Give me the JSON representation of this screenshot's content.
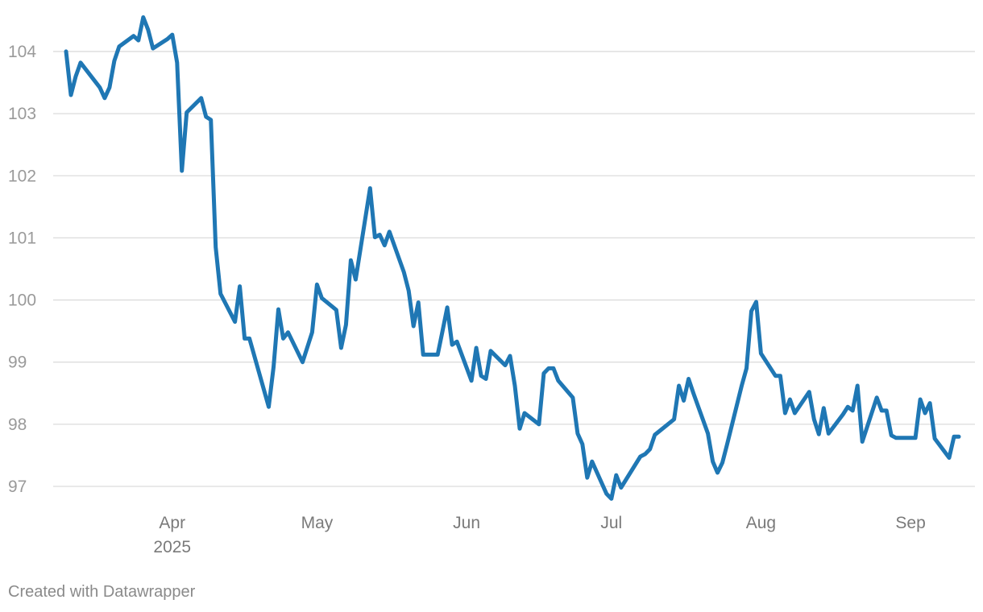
{
  "credit": "Created with Datawrapper",
  "colors": {
    "series": "#1f77b4",
    "grid": "#dcdcdc",
    "tick_label": "#9a9a9a"
  },
  "chart_data": {
    "type": "line",
    "title": "",
    "xlabel": "",
    "ylabel": "",
    "ylim": [
      96.8,
      104.6
    ],
    "grid": true,
    "legend": "none",
    "y_ticks": [
      97,
      98,
      99,
      100,
      101,
      102,
      103,
      104
    ],
    "x_ticks": [
      {
        "date": "2025-04-01",
        "label": "Apr",
        "sublabel": "2025"
      },
      {
        "date": "2025-05-01",
        "label": "May",
        "sublabel": ""
      },
      {
        "date": "2025-06-01",
        "label": "Jun",
        "sublabel": ""
      },
      {
        "date": "2025-07-01",
        "label": "Jul",
        "sublabel": ""
      },
      {
        "date": "2025-08-01",
        "label": "Aug",
        "sublabel": ""
      },
      {
        "date": "2025-09-01",
        "label": "Sep",
        "sublabel": ""
      }
    ],
    "series": [
      {
        "color": "#1f77b4",
        "points": [
          [
            "2025-03-10",
            104.0
          ],
          [
            "2025-03-11",
            103.3
          ],
          [
            "2025-03-12",
            103.6
          ],
          [
            "2025-03-13",
            103.82
          ],
          [
            "2025-03-17",
            103.42
          ],
          [
            "2025-03-18",
            103.25
          ],
          [
            "2025-03-19",
            103.42
          ],
          [
            "2025-03-20",
            103.85
          ],
          [
            "2025-03-21",
            104.08
          ],
          [
            "2025-03-24",
            104.25
          ],
          [
            "2025-03-25",
            104.18
          ],
          [
            "2025-03-26",
            104.55
          ],
          [
            "2025-03-27",
            104.35
          ],
          [
            "2025-03-28",
            104.05
          ],
          [
            "2025-03-31",
            104.2
          ],
          [
            "2025-04-01",
            104.27
          ],
          [
            "2025-04-02",
            103.82
          ],
          [
            "2025-04-03",
            102.08
          ],
          [
            "2025-04-04",
            103.02
          ],
          [
            "2025-04-07",
            103.25
          ],
          [
            "2025-04-08",
            102.95
          ],
          [
            "2025-04-09",
            102.9
          ],
          [
            "2025-04-10",
            100.85
          ],
          [
            "2025-04-11",
            100.1
          ],
          [
            "2025-04-14",
            99.65
          ],
          [
            "2025-04-15",
            100.22
          ],
          [
            "2025-04-16",
            99.38
          ],
          [
            "2025-04-17",
            99.38
          ],
          [
            "2025-04-21",
            98.28
          ],
          [
            "2025-04-22",
            98.92
          ],
          [
            "2025-04-23",
            99.85
          ],
          [
            "2025-04-24",
            99.38
          ],
          [
            "2025-04-25",
            99.48
          ],
          [
            "2025-04-28",
            99.0
          ],
          [
            "2025-04-30",
            99.48
          ],
          [
            "2025-05-01",
            100.25
          ],
          [
            "2025-05-02",
            100.03
          ],
          [
            "2025-05-05",
            99.84
          ],
          [
            "2025-05-06",
            99.23
          ],
          [
            "2025-05-07",
            99.6
          ],
          [
            "2025-05-08",
            100.64
          ],
          [
            "2025-05-09",
            100.33
          ],
          [
            "2025-05-12",
            101.8
          ],
          [
            "2025-05-13",
            101.01
          ],
          [
            "2025-05-14",
            101.05
          ],
          [
            "2025-05-15",
            100.88
          ],
          [
            "2025-05-16",
            101.1
          ],
          [
            "2025-05-19",
            100.45
          ],
          [
            "2025-05-20",
            100.15
          ],
          [
            "2025-05-21",
            99.58
          ],
          [
            "2025-05-22",
            99.96
          ],
          [
            "2025-05-23",
            99.12
          ],
          [
            "2025-05-26",
            99.12
          ],
          [
            "2025-05-27",
            99.5
          ],
          [
            "2025-05-28",
            99.88
          ],
          [
            "2025-05-29",
            99.28
          ],
          [
            "2025-05-30",
            99.33
          ],
          [
            "2025-06-02",
            98.7
          ],
          [
            "2025-06-03",
            99.23
          ],
          [
            "2025-06-04",
            98.78
          ],
          [
            "2025-06-05",
            98.73
          ],
          [
            "2025-06-06",
            99.18
          ],
          [
            "2025-06-09",
            98.95
          ],
          [
            "2025-06-10",
            99.1
          ],
          [
            "2025-06-11",
            98.62
          ],
          [
            "2025-06-12",
            97.93
          ],
          [
            "2025-06-13",
            98.18
          ],
          [
            "2025-06-16",
            98.0
          ],
          [
            "2025-06-17",
            98.82
          ],
          [
            "2025-06-18",
            98.9
          ],
          [
            "2025-06-19",
            98.9
          ],
          [
            "2025-06-20",
            98.7
          ],
          [
            "2025-06-23",
            98.43
          ],
          [
            "2025-06-24",
            97.85
          ],
          [
            "2025-06-25",
            97.68
          ],
          [
            "2025-06-26",
            97.14
          ],
          [
            "2025-06-27",
            97.4
          ],
          [
            "2025-06-30",
            96.88
          ],
          [
            "2025-07-01",
            96.8
          ],
          [
            "2025-07-02",
            97.18
          ],
          [
            "2025-07-03",
            96.98
          ],
          [
            "2025-07-07",
            97.48
          ],
          [
            "2025-07-08",
            97.52
          ],
          [
            "2025-07-09",
            97.6
          ],
          [
            "2025-07-10",
            97.83
          ],
          [
            "2025-07-14",
            98.08
          ],
          [
            "2025-07-15",
            98.62
          ],
          [
            "2025-07-16",
            98.38
          ],
          [
            "2025-07-17",
            98.73
          ],
          [
            "2025-07-18",
            98.5
          ],
          [
            "2025-07-21",
            97.85
          ],
          [
            "2025-07-22",
            97.4
          ],
          [
            "2025-07-23",
            97.22
          ],
          [
            "2025-07-24",
            97.38
          ],
          [
            "2025-07-25",
            97.68
          ],
          [
            "2025-07-28",
            98.62
          ],
          [
            "2025-07-29",
            98.9
          ],
          [
            "2025-07-30",
            99.82
          ],
          [
            "2025-07-31",
            99.97
          ],
          [
            "2025-08-01",
            99.14
          ],
          [
            "2025-08-04",
            98.78
          ],
          [
            "2025-08-05",
            98.78
          ],
          [
            "2025-08-06",
            98.18
          ],
          [
            "2025-08-07",
            98.4
          ],
          [
            "2025-08-08",
            98.18
          ],
          [
            "2025-08-11",
            98.52
          ],
          [
            "2025-08-12",
            98.08
          ],
          [
            "2025-08-13",
            97.84
          ],
          [
            "2025-08-14",
            98.26
          ],
          [
            "2025-08-15",
            97.85
          ],
          [
            "2025-08-18",
            98.16
          ],
          [
            "2025-08-19",
            98.28
          ],
          [
            "2025-08-20",
            98.22
          ],
          [
            "2025-08-21",
            98.62
          ],
          [
            "2025-08-22",
            97.72
          ],
          [
            "2025-08-25",
            98.43
          ],
          [
            "2025-08-26",
            98.22
          ],
          [
            "2025-08-27",
            98.22
          ],
          [
            "2025-08-28",
            97.82
          ],
          [
            "2025-08-29",
            97.78
          ],
          [
            "2025-09-02",
            97.78
          ],
          [
            "2025-09-03",
            98.4
          ],
          [
            "2025-09-04",
            98.18
          ],
          [
            "2025-09-05",
            98.34
          ],
          [
            "2025-09-06",
            97.77
          ],
          [
            "2025-09-09",
            97.46
          ],
          [
            "2025-09-10",
            97.8
          ],
          [
            "2025-09-11",
            97.8
          ]
        ]
      }
    ]
  }
}
